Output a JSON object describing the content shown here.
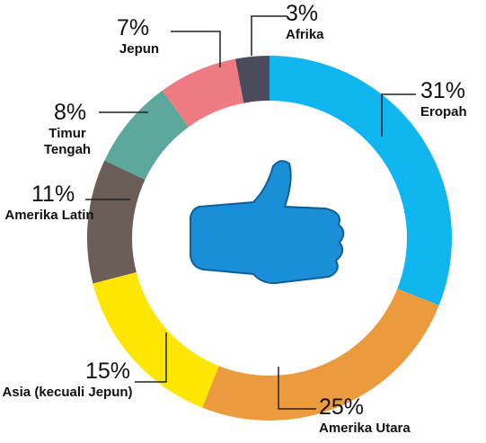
{
  "chart_data": {
    "type": "donut",
    "categories": [
      "Eropah",
      "Amerika Utara",
      "Asia (kecuali Jepun)",
      "Amerika Latin",
      "Timur Tengah",
      "Jepun",
      "Afrika"
    ],
    "values": [
      31,
      25,
      15,
      11,
      8,
      7,
      3
    ],
    "value_labels": [
      "31%",
      "25%",
      "15%",
      "11%",
      "8%",
      "7%",
      "3%"
    ],
    "colors": [
      "#0fb5ee",
      "#ec9a3e",
      "#ffe600",
      "#6b5e58",
      "#5ca89c",
      "#ef7b82",
      "#4b4b5c"
    ]
  }
}
